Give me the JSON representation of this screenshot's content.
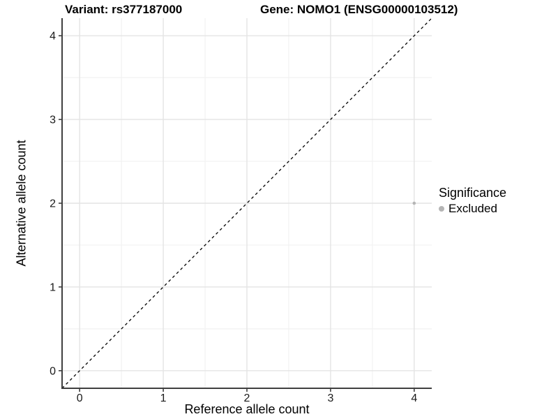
{
  "figure": {
    "title_variant": "Variant: rs377187000",
    "title_gene": "Gene: NOMO1 (ENSG00000103512)"
  },
  "chart_data": {
    "type": "scatter",
    "title": "Variant: rs377187000    Gene: NOMO1 (ENSG00000103512)",
    "xlabel": "Reference allele count",
    "ylabel": "Alternative allele count",
    "xlim": [
      -0.21,
      4.21
    ],
    "ylim": [
      -0.21,
      4.21
    ],
    "x_ticks": [
      0,
      1,
      2,
      3,
      4
    ],
    "y_ticks": [
      0,
      1,
      2,
      3,
      4
    ],
    "x_minor_breaks": [
      0.5,
      1.5,
      2.5,
      3.5
    ],
    "y_minor_breaks": [
      0.5,
      1.5,
      2.5,
      3.5
    ],
    "grid": true,
    "series": [
      {
        "name": "Excluded",
        "points": [
          {
            "x": 4,
            "y": 2
          }
        ],
        "color": "#b5b5b5",
        "marker": "circle"
      }
    ],
    "reference_line": {
      "style": "dashed",
      "slope": 1,
      "intercept": 0,
      "color": "#000000"
    },
    "legend": {
      "title": "Significance",
      "position": "right",
      "entries": [
        {
          "label": "Excluded",
          "color": "#b5b5b5",
          "marker": "circle"
        }
      ]
    },
    "colors": {
      "grid_major": "#e4e4e4",
      "grid_minor": "#f2f2f2",
      "axis_line": "#3f3f3f",
      "tick_label": "#1a1a1a",
      "background": "#ffffff"
    }
  }
}
